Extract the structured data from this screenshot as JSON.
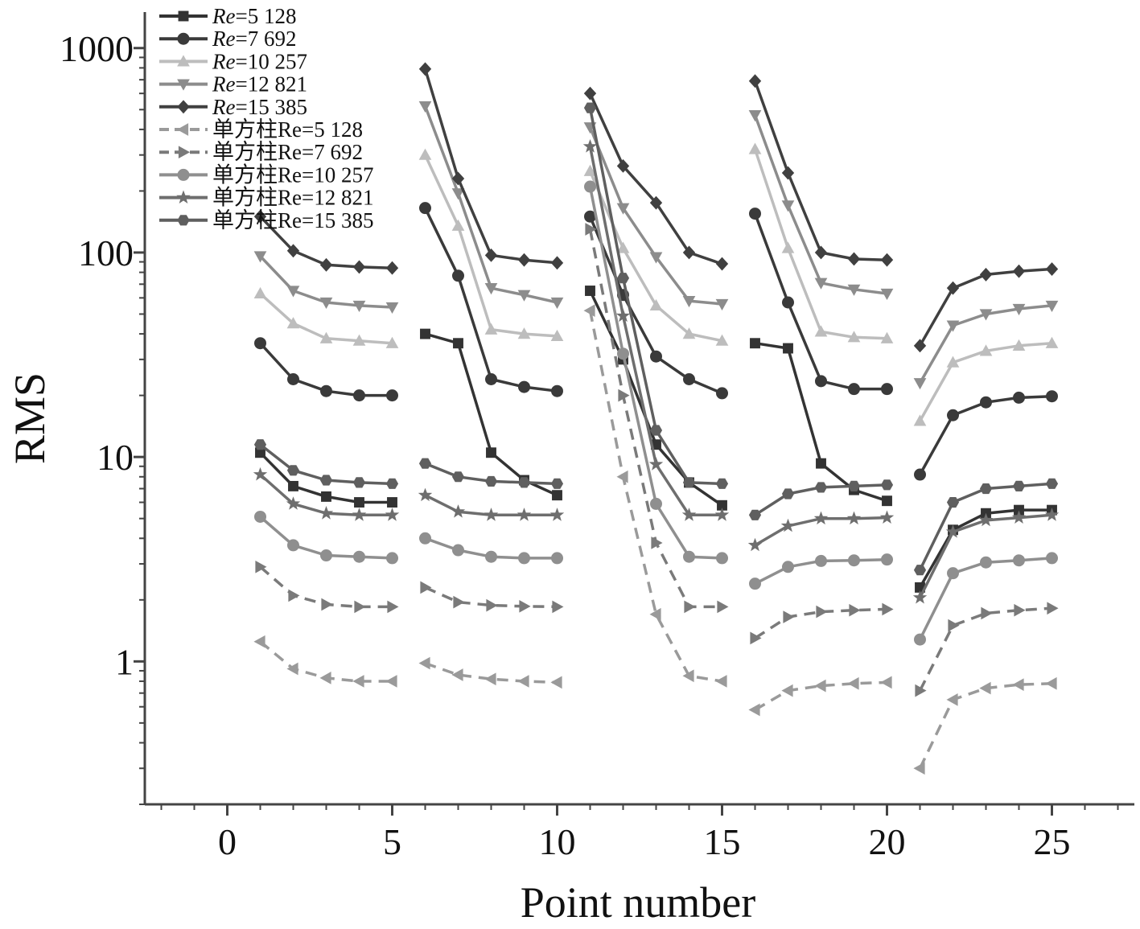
{
  "chart_data": {
    "type": "line",
    "title": "",
    "xlabel": "Point number",
    "ylabel": "RMS",
    "xlim": [
      -2.5,
      27.5
    ],
    "ylim": [
      0.2,
      1500
    ],
    "y_scale": "log",
    "x_ticks": [
      0,
      5,
      10,
      15,
      20,
      25
    ],
    "x_tick_labels": [
      "0",
      "5",
      "10",
      "15",
      "20",
      "25"
    ],
    "y_ticks": [
      1,
      10,
      100,
      1000
    ],
    "y_tick_labels": [
      "1",
      "10",
      "100",
      "1000"
    ],
    "grid": false,
    "legend_position": "top-left",
    "x": [
      1,
      2,
      3,
      4,
      5,
      6,
      7,
      8,
      9,
      10,
      11,
      12,
      13,
      14,
      15,
      16,
      17,
      18,
      19,
      20,
      21,
      22,
      23,
      24,
      25
    ],
    "series": [
      {
        "name": "Re=5 128",
        "name_prefix": "Re",
        "name_rest": "=5 128",
        "marker": "square",
        "dashed": false,
        "color": "#333333",
        "values": [
          10.5,
          7.2,
          6.4,
          6.0,
          6.0,
          40,
          36,
          10.5,
          7.7,
          6.5,
          65,
          30,
          11.5,
          7.5,
          5.8,
          36,
          34,
          9.3,
          6.9,
          6.1,
          2.3,
          4.4,
          5.3,
          5.5,
          5.5
        ]
      },
      {
        "name": "Re=7 692",
        "name_prefix": "Re",
        "name_rest": "=7 692",
        "marker": "circle",
        "dashed": false,
        "color": "#3a3a3a",
        "values": [
          36,
          24,
          21,
          20,
          20,
          165,
          77,
          24,
          22,
          21,
          150,
          62,
          31,
          24,
          20.5,
          155,
          57,
          23.5,
          21.5,
          21.5,
          8.2,
          16,
          18.5,
          19.5,
          19.8
        ]
      },
      {
        "name": "Re=10 257",
        "name_prefix": "Re",
        "name_rest": "=10 257",
        "marker": "triangle-up",
        "dashed": false,
        "color": "#bdbdbd",
        "values": [
          63,
          45,
          38,
          37,
          36,
          300,
          135,
          42,
          40,
          39,
          250,
          105,
          55,
          40,
          37,
          320,
          105,
          41,
          38.5,
          38,
          15,
          29,
          33,
          35,
          36
        ]
      },
      {
        "name": "Re=12 821",
        "name_prefix": "Re",
        "name_rest": "=12 821",
        "marker": "triangle-down",
        "dashed": false,
        "color": "#8c8c8c",
        "values": [
          96,
          65,
          57,
          55,
          54,
          520,
          195,
          67,
          62,
          57,
          410,
          165,
          95,
          58,
          56,
          470,
          170,
          71,
          66,
          63,
          23,
          44,
          50,
          53,
          55
        ]
      },
      {
        "name": "Re=15 385",
        "name_prefix": "Re",
        "name_rest": "=15 385",
        "marker": "diamond",
        "dashed": false,
        "color": "#404040",
        "values": [
          150,
          102,
          87,
          85,
          84,
          790,
          230,
          97,
          92,
          89,
          600,
          265,
          175,
          100,
          88,
          690,
          245,
          100,
          93,
          92,
          35,
          67,
          78,
          81,
          83
        ]
      },
      {
        "name": "单方柱Re=5 128",
        "marker": "triangle-left",
        "dashed": true,
        "color": "#9a9a9a",
        "values": [
          1.25,
          0.92,
          0.83,
          0.8,
          0.8,
          0.98,
          0.86,
          0.82,
          0.8,
          0.79,
          52,
          8,
          1.7,
          0.85,
          0.8,
          0.58,
          0.72,
          0.76,
          0.78,
          0.79,
          0.3,
          0.65,
          0.74,
          0.77,
          0.78
        ]
      },
      {
        "name": "单方柱Re=7 692",
        "marker": "triangle-right",
        "dashed": true,
        "color": "#7a7a7a",
        "values": [
          2.9,
          2.1,
          1.9,
          1.85,
          1.85,
          2.3,
          1.95,
          1.88,
          1.86,
          1.85,
          130,
          20,
          3.8,
          1.85,
          1.85,
          1.3,
          1.65,
          1.75,
          1.78,
          1.8,
          0.72,
          1.5,
          1.72,
          1.78,
          1.82
        ]
      },
      {
        "name": "单方柱Re=10 257",
        "marker": "circle",
        "dashed": false,
        "color": "#8f8f8f",
        "values": [
          5.1,
          3.7,
          3.3,
          3.25,
          3.2,
          4.0,
          3.5,
          3.25,
          3.2,
          3.2,
          210,
          32,
          5.9,
          3.25,
          3.2,
          2.4,
          2.9,
          3.1,
          3.12,
          3.15,
          1.28,
          2.7,
          3.05,
          3.12,
          3.2
        ]
      },
      {
        "name": "单方柱Re=12 821",
        "marker": "star",
        "dashed": false,
        "color": "#6e6e6e",
        "values": [
          8.2,
          5.9,
          5.3,
          5.2,
          5.2,
          6.5,
          5.4,
          5.2,
          5.2,
          5.2,
          330,
          49,
          9.2,
          5.2,
          5.2,
          3.7,
          4.6,
          5.0,
          5.0,
          5.05,
          2.05,
          4.3,
          4.9,
          5.05,
          5.2
        ]
      },
      {
        "name": "单方柱Re=15 385",
        "marker": "hexagon",
        "dashed": false,
        "color": "#5f5f5f",
        "values": [
          11.5,
          8.6,
          7.7,
          7.5,
          7.4,
          9.3,
          8.0,
          7.6,
          7.5,
          7.4,
          510,
          75,
          13.5,
          7.5,
          7.4,
          5.2,
          6.6,
          7.1,
          7.2,
          7.3,
          2.8,
          6.0,
          7.0,
          7.2,
          7.4
        ]
      }
    ]
  }
}
